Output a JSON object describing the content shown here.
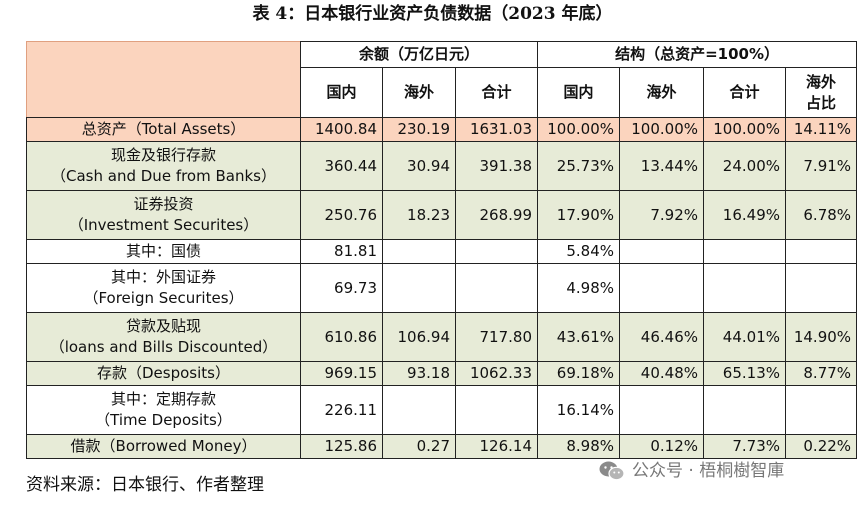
{
  "title": "表 4：日本银行业资产负债数据（2023 年底）",
  "header": {
    "group1": "余额（万亿日元）",
    "group2": "结构（总资产=100%）",
    "sub": [
      "国内",
      "海外",
      "合计",
      "国内",
      "海外",
      "合计"
    ],
    "overseas_share_line1": "海外",
    "overseas_share_line2": "占比"
  },
  "rows": [
    {
      "label1": "总资产（Total Assets）",
      "label2": "",
      "values": [
        "1400.84",
        "230.19",
        "1631.03",
        "100.00%",
        "100.00%",
        "100.00%",
        "14.11%"
      ]
    },
    {
      "label1": "现金及银行存款",
      "label2": "（Cash and Due from Banks）",
      "values": [
        "360.44",
        "30.94",
        "391.38",
        "25.73%",
        "13.44%",
        "24.00%",
        "7.91%"
      ]
    },
    {
      "label1": "证券投资",
      "label2": "（Investment Securites）",
      "values": [
        "250.76",
        "18.23",
        "268.99",
        "17.90%",
        "7.92%",
        "16.49%",
        "6.78%"
      ]
    },
    {
      "label1": "其中：国债",
      "label2": "",
      "values": [
        "81.81",
        "",
        "",
        "5.84%",
        "",
        "",
        ""
      ]
    },
    {
      "label1": "其中：外国证券",
      "label2": "（Foreign Securites）",
      "values": [
        "69.73",
        "",
        "",
        "4.98%",
        "",
        "",
        ""
      ]
    },
    {
      "label1": "贷款及贴现",
      "label2": "（loans and Bills Discounted）",
      "values": [
        "610.86",
        "106.94",
        "717.80",
        "43.61%",
        "46.46%",
        "44.01%",
        "14.90%"
      ]
    },
    {
      "label1": "存款（Desposits）",
      "label2": "",
      "values": [
        "969.15",
        "93.18",
        "1062.33",
        "69.18%",
        "40.48%",
        "65.13%",
        "8.77%"
      ]
    },
    {
      "label1": "其中：定期存款",
      "label2": "（Time Deposits）",
      "values": [
        "226.11",
        "",
        "",
        "16.14%",
        "",
        "",
        ""
      ]
    },
    {
      "label1": "借款（Borrowed Money）",
      "label2": "",
      "values": [
        "125.86",
        "0.27",
        "126.14",
        "8.98%",
        "0.12%",
        "7.73%",
        "0.22%"
      ]
    }
  ],
  "footnote": "资料来源：日本银行、作者整理",
  "watermark": "公众号 · 梧桐樹智庫",
  "colors": {
    "peach": "#fbd4be",
    "olive": "#e7ebd7"
  }
}
